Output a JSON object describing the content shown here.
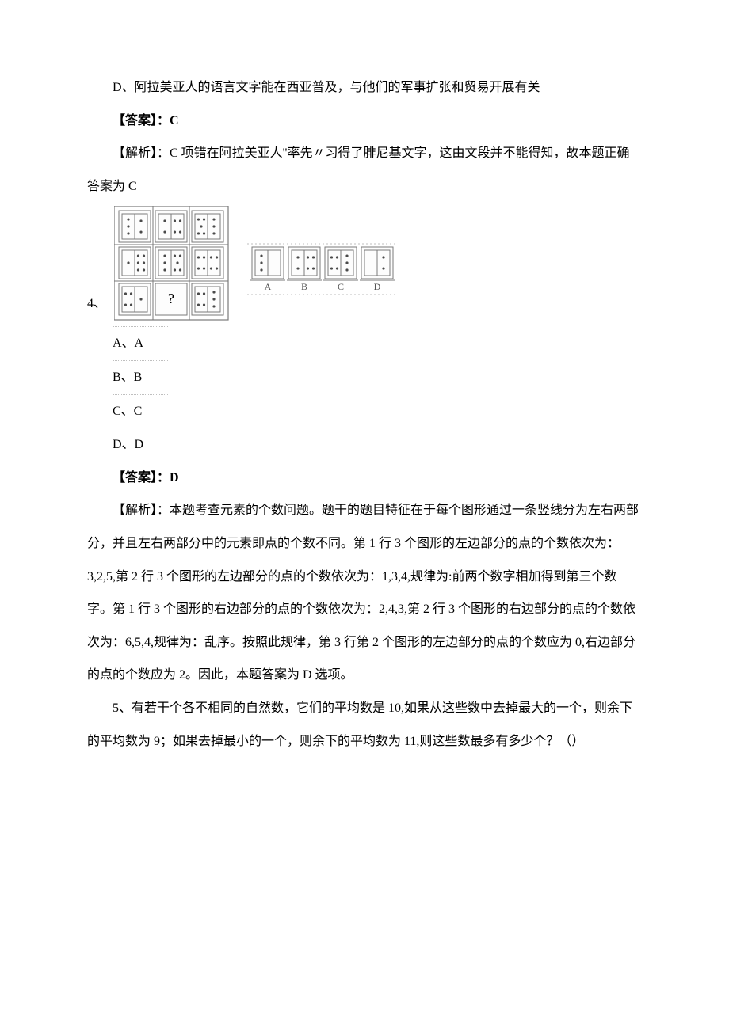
{
  "colors": {
    "text": "#000000",
    "bg": "#ffffff",
    "grid_border": "#7a7a7a",
    "grid_fill": "#fdfdfd",
    "dotted": "#bfbfbf",
    "option_label": "#555555"
  },
  "q3": {
    "option_d": "D、阿拉美亚人的语言文字能在西亚普及，与他们的军事扩张和贸易开展有关",
    "answer_label": "【答案】：C",
    "analysis": "【解析】：C 项错在阿拉美亚人''率先〃习得了腓尼基文字，这由文段并不能得知，故本题正确答案为 C"
  },
  "q4": {
    "number_label": "4、",
    "options": {
      "a": "A、A",
      "b": "B、B",
      "c": "C、C",
      "d": "D、D"
    },
    "answer_label": "【答案】：D",
    "analysis": "【解析】：本题考查元素的个数问题。题干的题目特征在于每个图形通过一条竖线分为左右两部分，并且左右两部分中的元素即点的个数不同。第 1 行 3 个图形的左边部分的点的个数依次为：3,2,5,第 2 行 3 个图形的左边部分的点的个数依次为：1,3,4,规律为:前两个数字相加得到第三个数字。第 1 行 3 个图形的右边部分的点的个数依次为：2,4,3,第 2 行 3 个图形的右边部分的点的个数依次为：6,5,4,规律为：乱序。按照此规律，第 3 行第 2 个图形的左边部分的点的个数应为 0,右边部分的点的个数应为 2。因此，本题答案为 D 选项。",
    "figure": {
      "type": "grid-puzzle",
      "cell_size": 40,
      "gap": 6,
      "stroke": "#7a7a7a",
      "fill": "#fdfdfd",
      "dot_color": "#4a4a4a",
      "dot_r": 1.6,
      "question_mark": "?",
      "main_grid": {
        "rows": 3,
        "cols": 3,
        "cells": [
          [
            {
              "L": 3,
              "R": 2
            },
            {
              "L": 2,
              "R": 4
            },
            {
              "L": 5,
              "R": 3
            }
          ],
          [
            {
              "L": 1,
              "R": 6
            },
            {
              "L": 3,
              "R": 5
            },
            {
              "L": 4,
              "R": 4
            }
          ],
          [
            {
              "L": 4,
              "R": 1
            },
            {
              "Q": true
            },
            {
              "L": 4,
              "R": 3
            }
          ]
        ]
      },
      "choice_row": {
        "cells": [
          {
            "label": "A",
            "L": 3,
            "R": 0
          },
          {
            "label": "B",
            "L": 2,
            "R": 4
          },
          {
            "label": "C",
            "L": 4,
            "R": 3
          },
          {
            "label": "D",
            "L": 0,
            "R": 2
          }
        ]
      }
    }
  },
  "q5": {
    "text": "5、有若干个各不相同的自然数，它们的平均数是 10,如果从这些数中去掉最大的一个，则余下的平均数为 9；如果去掉最小的一个，则余下的平均数为 11,则这些数最多有多少个？（）"
  }
}
